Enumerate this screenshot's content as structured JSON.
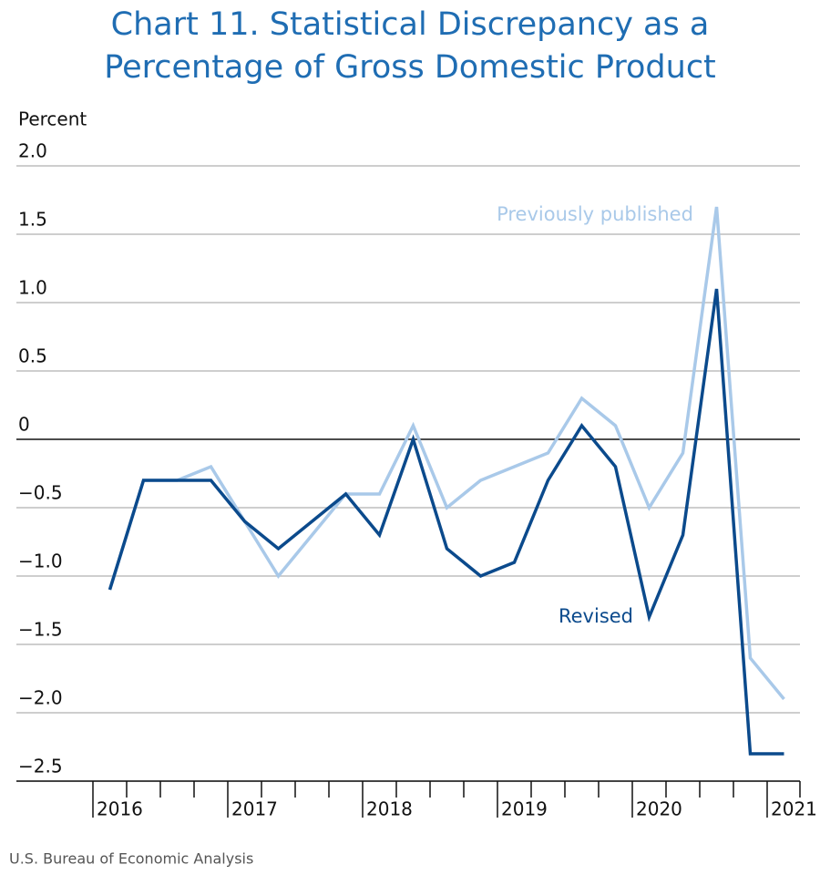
{
  "chart_data": {
    "type": "line",
    "title": [
      "Chart 11. Statistical Discrepancy as a",
      "Percentage of Gross Domestic Product"
    ],
    "y_label": "Percent",
    "source": "U.S. Bureau of Economic Analysis",
    "categories": [
      "2016",
      null,
      null,
      null,
      "2017",
      null,
      null,
      null,
      "2018",
      null,
      null,
      null,
      "2019",
      null,
      null,
      null,
      "2020",
      null,
      null,
      null,
      "2021"
    ],
    "series": [
      {
        "name": "Previously published",
        "color": "#a9c9e9",
        "values": [
          -1.1,
          -0.3,
          -0.3,
          -0.2,
          -0.6,
          -1.0,
          -0.7,
          -0.4,
          -0.4,
          0.1,
          -0.5,
          -0.3,
          -0.2,
          -0.1,
          0.3,
          0.1,
          -0.5,
          -0.1,
          1.7,
          -1.6,
          -1.9
        ]
      },
      {
        "name": "Revised",
        "color": "#0b4a8c",
        "values": [
          -1.1,
          -0.3,
          -0.3,
          -0.3,
          -0.6,
          -0.8,
          -0.6,
          -0.4,
          -0.7,
          0.0,
          -0.8,
          -1.0,
          -0.9,
          -0.3,
          0.1,
          -0.2,
          -1.3,
          -0.7,
          1.1,
          -2.3,
          -2.3
        ]
      }
    ],
    "ylim": [
      -2.5,
      2.0
    ],
    "yticks": [
      {
        "value": -2.5,
        "label": "−2.5"
      },
      {
        "value": -2.0,
        "label": "−2.0"
      },
      {
        "value": -1.5,
        "label": "−1.5"
      },
      {
        "value": -1.0,
        "label": "−1.0"
      },
      {
        "value": -0.5,
        "label": "−0.5"
      },
      0,
      {
        "value": 0.5,
        "label": "0.5"
      },
      {
        "value": 1.0,
        "label": "1.0"
      },
      {
        "value": 1.5,
        "label": "1.5"
      },
      {
        "value": 2.0,
        "label": "2.0"
      }
    ],
    "grid": true
  }
}
